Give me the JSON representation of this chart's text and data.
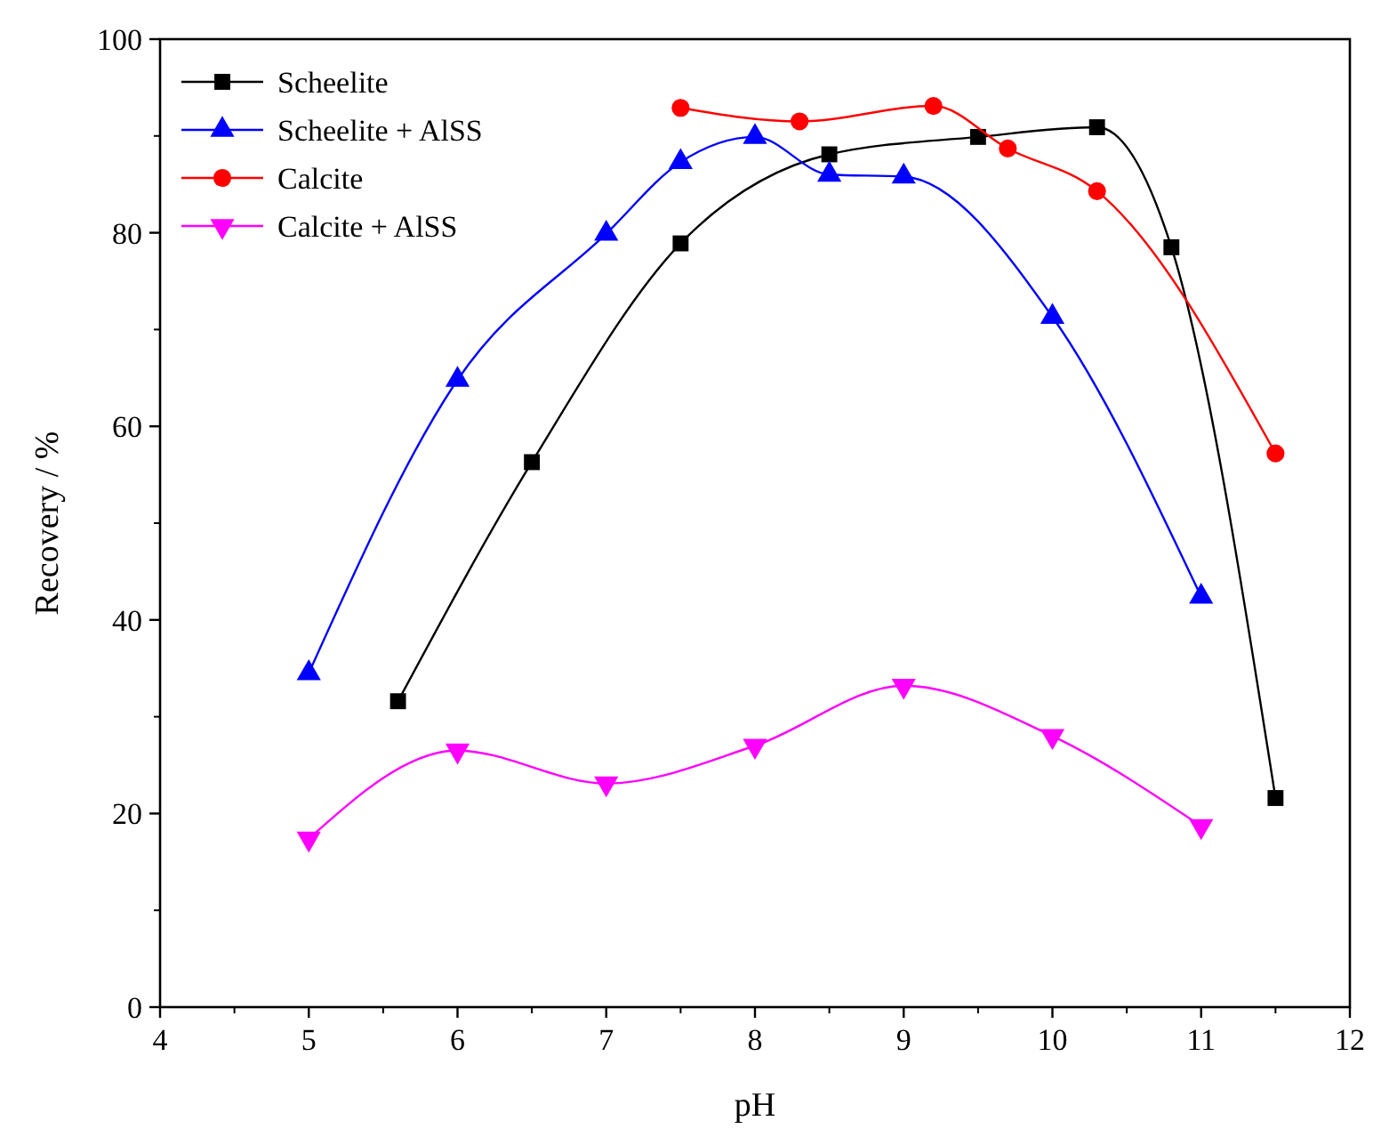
{
  "chart_data": {
    "type": "line",
    "xlabel": "pH",
    "ylabel": "Recovery / %",
    "xlim": [
      4,
      12
    ],
    "xticks": [
      4,
      5,
      6,
      7,
      8,
      9,
      10,
      11,
      12
    ],
    "ylim": [
      0,
      100
    ],
    "yticks": [
      0,
      20,
      40,
      60,
      80,
      100
    ],
    "grid": false,
    "legend": "top left",
    "line_style": "solid",
    "series": [
      {
        "name": "Scheelite",
        "color": "#000000",
        "marker": "square",
        "x": [
          5.6,
          6.5,
          7.5,
          8.5,
          9.5,
          10.3,
          10.8,
          11.5
        ],
        "values": [
          31.6,
          56.3,
          78.9,
          88.1,
          89.9,
          90.9,
          78.5,
          21.6
        ]
      },
      {
        "name": "Scheelite + AlSS",
        "color": "#0000ff",
        "marker": "triangle",
        "x": [
          5,
          6,
          7,
          7.5,
          8,
          8.5,
          9,
          10,
          11
        ],
        "values": [
          34.5,
          64.8,
          79.9,
          87.3,
          89.9,
          86.0,
          85.8,
          71.3,
          42.4
        ]
      },
      {
        "name": "Calcite",
        "color": "#ff0000",
        "marker": "circle",
        "x": [
          7.5,
          8.3,
          9.2,
          9.7,
          10.3,
          11.5
        ],
        "values": [
          92.9,
          91.5,
          93.1,
          88.7,
          84.3,
          57.2
        ]
      },
      {
        "name": "Calcite + AlSS",
        "color": "#ff00ff",
        "marker": "triangle-down",
        "x": [
          5,
          6,
          7,
          8,
          9,
          10,
          11
        ],
        "values": [
          17.4,
          26.5,
          23.1,
          27.0,
          33.2,
          28.0,
          18.7
        ]
      }
    ]
  }
}
